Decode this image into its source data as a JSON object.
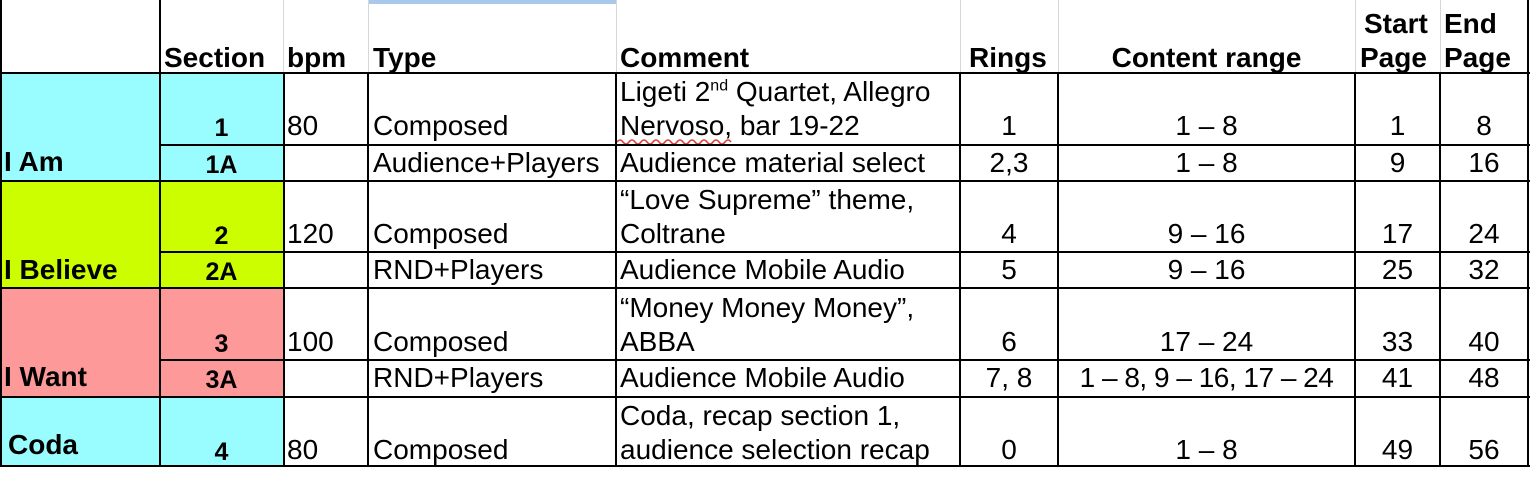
{
  "headers": {
    "section": "Section",
    "bpm": "bpm",
    "type": "Type",
    "comment": "Comment",
    "rings": "Rings",
    "content_range": "Content range",
    "start_page_1": "Start",
    "start_page_2": "Page",
    "end_page_1": "End",
    "end_page_2": "Page"
  },
  "groups": [
    {
      "name": "I Am",
      "color": "#99fcfe"
    },
    {
      "name": "I Believe",
      "color": "#ccfe00"
    },
    {
      "name": "I Want",
      "color": "#fe9999"
    },
    {
      "name": "Coda",
      "color": "#99fcfe"
    }
  ],
  "rows": [
    {
      "section": "1",
      "bpm": "80",
      "type": "Composed",
      "comment_line1": "Ligeti 2",
      "comment_sup": "nd",
      "comment_line1b": " Quartet, Allegro",
      "comment_line2": "Nervoso, bar 19-22",
      "rings": "1",
      "content_range": "1 – 8",
      "start_page": "1",
      "end_page": "8"
    },
    {
      "section": "1A",
      "bpm": "",
      "type": "Audience+Players",
      "comment_line1": "Audience material select",
      "rings": "2,3",
      "content_range": "1 – 8",
      "start_page": "9",
      "end_page": "16"
    },
    {
      "section": "2",
      "bpm": "120",
      "type": "Composed",
      "comment_line1": "“Love Supreme” theme,",
      "comment_line2": "Coltrane",
      "rings": "4",
      "content_range": "9 – 16",
      "start_page": "17",
      "end_page": "24"
    },
    {
      "section": "2A",
      "bpm": "",
      "type": "RND+Players",
      "comment_line1": "Audience Mobile Audio",
      "rings": "5",
      "content_range": "9 – 16",
      "start_page": "25",
      "end_page": "32"
    },
    {
      "section": "3",
      "bpm": "100",
      "type": "Composed",
      "comment_line1": "“Money Money Money”,",
      "comment_line2": "ABBA",
      "rings": "6",
      "content_range": "17 – 24",
      "start_page": "33",
      "end_page": "40"
    },
    {
      "section": "3A",
      "bpm": "",
      "type": "RND+Players",
      "comment_line1": "Audience Mobile Audio",
      "rings": "7, 8",
      "content_range": "1 – 8, 9 – 16, 17 – 24",
      "start_page": "41",
      "end_page": "48"
    },
    {
      "section": "4",
      "bpm": "80",
      "type": "Composed",
      "comment_line1": "Coda, recap section 1,",
      "comment_line2": "audience selection recap",
      "rings": "0",
      "content_range": "1 – 8",
      "start_page": "49",
      "end_page": "56"
    }
  ]
}
